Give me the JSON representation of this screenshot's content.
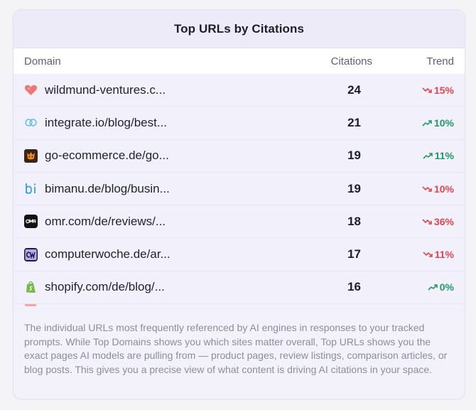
{
  "card": {
    "title": "Top URLs by Citations",
    "columns": {
      "domain": "Domain",
      "citations": "Citations",
      "trend": "Trend"
    },
    "rows": [
      {
        "icon": "heart-logo-icon",
        "url": "wildmund-ventures.c...",
        "citations": "24",
        "trend": "15%",
        "direction": "down"
      },
      {
        "icon": "integrate-logo-icon",
        "url": "integrate.io/blog/best...",
        "citations": "21",
        "trend": "10%",
        "direction": "up"
      },
      {
        "icon": "go-ecommerce-logo-icon",
        "url": "go-ecommerce.de/go...",
        "citations": "19",
        "trend": "11%",
        "direction": "up"
      },
      {
        "icon": "bimanu-logo-icon",
        "url": "bimanu.de/blog/busin...",
        "citations": "19",
        "trend": "10%",
        "direction": "down"
      },
      {
        "icon": "omr-logo-icon",
        "url": "omr.com/de/reviews/...",
        "citations": "18",
        "trend": "36%",
        "direction": "down"
      },
      {
        "icon": "computerwoche-logo-icon",
        "url": "computerwoche.de/ar...",
        "citations": "17",
        "trend": "11%",
        "direction": "down"
      },
      {
        "icon": "shopify-logo-icon",
        "url": "shopify.com/de/blog/...",
        "citations": "16",
        "trend": "0%",
        "direction": "up"
      }
    ],
    "description": "The individual URLs most frequently referenced by AI engines in responses to your tracked prompts. While Top Domains shows you which sites matter overall, Top URLs shows you the exact pages AI models are pulling from — product pages, review listings, comparison articles, or blog posts. This gives you a precise view of what content is driving AI citations in your space."
  },
  "colors": {
    "down": "#e0464e",
    "up": "#1f9a68"
  }
}
